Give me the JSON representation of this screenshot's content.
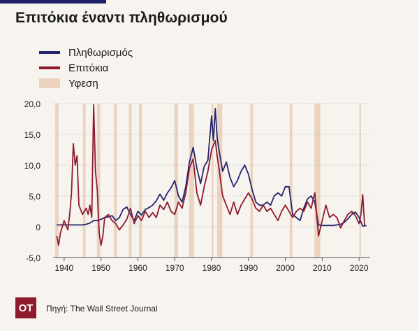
{
  "title": "Επιτόκια έναντι πληθωρισμού",
  "source": "Πηγή: The Wall Street Journal",
  "logo_text": "OT",
  "colors": {
    "inflation": "#24256e",
    "rates": "#8e1a2e",
    "recession": "#ecd3bf",
    "background": "#f7f3ee"
  },
  "chart_data": {
    "type": "line",
    "title": "Επιτόκια έναντι πληθωρισμού",
    "xlabel": "",
    "ylabel": "",
    "xlim": [
      1937,
      2023
    ],
    "ylim": [
      -5,
      20
    ],
    "x_ticks": [
      1940,
      1950,
      1960,
      1970,
      1980,
      1990,
      2000,
      2010,
      2020
    ],
    "x_tick_labels": [
      "1940",
      "1950",
      "1960",
      "1970",
      "1980",
      "1990",
      "2000",
      "2010",
      "2020"
    ],
    "y_ticks": [
      -5,
      0,
      5,
      10,
      15,
      20
    ],
    "y_tick_labels": [
      "-5,0",
      "0",
      "5,0",
      "10,0",
      "15,0",
      "20,0"
    ],
    "grid": "horizontal",
    "legend_position": "top-left",
    "series": [
      {
        "name": "Πληθωρισμός",
        "color": "#24256e",
        "points": [
          [
            1938,
            0.3
          ],
          [
            1941,
            0.3
          ],
          [
            1942,
            0.3
          ],
          [
            1943,
            0.3
          ],
          [
            1944,
            0.3
          ],
          [
            1945,
            0.3
          ],
          [
            1946,
            0.4
          ],
          [
            1947,
            0.6
          ],
          [
            1948,
            1.0
          ],
          [
            1949,
            1.0
          ],
          [
            1950,
            1.2
          ],
          [
            1951,
            1.5
          ],
          [
            1952,
            1.6
          ],
          [
            1953,
            1.8
          ],
          [
            1954,
            1.0
          ],
          [
            1955,
            1.5
          ],
          [
            1956,
            2.8
          ],
          [
            1957,
            3.2
          ],
          [
            1958,
            2.0
          ],
          [
            1959,
            1.0
          ],
          [
            1960,
            2.5
          ],
          [
            1961,
            1.9
          ],
          [
            1962,
            2.8
          ],
          [
            1963,
            3.1
          ],
          [
            1964,
            3.5
          ],
          [
            1965,
            4.2
          ],
          [
            1966,
            5.3
          ],
          [
            1967,
            4.3
          ],
          [
            1968,
            5.5
          ],
          [
            1969,
            6.3
          ],
          [
            1970,
            7.5
          ],
          [
            1971,
            5.0
          ],
          [
            1972,
            4.0
          ],
          [
            1973,
            6.5
          ],
          [
            1974,
            10.5
          ],
          [
            1975,
            12.9
          ],
          [
            1976,
            9.5
          ],
          [
            1977,
            7.0
          ],
          [
            1978,
            9.8
          ],
          [
            1979,
            10.8
          ],
          [
            1980,
            18.0
          ],
          [
            1980.5,
            14.0
          ],
          [
            1981,
            19.2
          ],
          [
            1981.5,
            14.5
          ],
          [
            1982,
            12.5
          ],
          [
            1983,
            9.0
          ],
          [
            1984,
            10.5
          ],
          [
            1985,
            8.0
          ],
          [
            1986,
            6.5
          ],
          [
            1987,
            7.5
          ],
          [
            1988,
            9.0
          ],
          [
            1989,
            10.0
          ],
          [
            1990,
            8.5
          ],
          [
            1991,
            6.0
          ],
          [
            1992,
            4.0
          ],
          [
            1993,
            3.5
          ],
          [
            1994,
            3.5
          ],
          [
            1995,
            4.0
          ],
          [
            1996,
            3.5
          ],
          [
            1997,
            5.0
          ],
          [
            1998,
            5.5
          ],
          [
            1999,
            5.0
          ],
          [
            2000,
            6.5
          ],
          [
            2001,
            6.5
          ],
          [
            2002,
            2.0
          ],
          [
            2003,
            1.5
          ],
          [
            2004,
            1.0
          ],
          [
            2005,
            3.0
          ],
          [
            2006,
            4.5
          ],
          [
            2007,
            5.0
          ],
          [
            2008,
            4.0
          ],
          [
            2009,
            0.3
          ],
          [
            2010,
            0.2
          ],
          [
            2011,
            0.2
          ],
          [
            2012,
            0.2
          ],
          [
            2013,
            0.2
          ],
          [
            2014,
            0.3
          ],
          [
            2015,
            0.4
          ],
          [
            2016,
            0.7
          ],
          [
            2017,
            1.3
          ],
          [
            2018,
            2.0
          ],
          [
            2019,
            2.4
          ],
          [
            2020,
            1.5
          ],
          [
            2021,
            0.1
          ],
          [
            2022,
            0.2
          ]
        ]
      },
      {
        "name": "Επιτόκια",
        "color": "#8e1a2e",
        "points": [
          [
            1938,
            -1.5
          ],
          [
            1938.5,
            -3.0
          ],
          [
            1939,
            -1.0
          ],
          [
            1940,
            1.0
          ],
          [
            1941,
            -0.5
          ],
          [
            1941.5,
            2.0
          ],
          [
            1942,
            5.5
          ],
          [
            1942.5,
            13.5
          ],
          [
            1943,
            10.0
          ],
          [
            1943.5,
            11.5
          ],
          [
            1944,
            3.5
          ],
          [
            1945,
            2.0
          ],
          [
            1946,
            3.0
          ],
          [
            1946.5,
            2.0
          ],
          [
            1947,
            3.5
          ],
          [
            1947.5,
            1.5
          ],
          [
            1948,
            19.8
          ],
          [
            1948.5,
            9.0
          ],
          [
            1949,
            6.0
          ],
          [
            1949.5,
            -1.0
          ],
          [
            1950,
            -3.0
          ],
          [
            1950.5,
            -1.5
          ],
          [
            1951,
            1.5
          ],
          [
            1952,
            2.0
          ],
          [
            1953,
            1.0
          ],
          [
            1954,
            0.5
          ],
          [
            1955,
            -0.5
          ],
          [
            1956,
            0.3
          ],
          [
            1957,
            1.2
          ],
          [
            1958,
            3.0
          ],
          [
            1959,
            0.5
          ],
          [
            1960,
            1.8
          ],
          [
            1961,
            1.0
          ],
          [
            1962,
            2.5
          ],
          [
            1963,
            1.5
          ],
          [
            1964,
            2.3
          ],
          [
            1965,
            1.5
          ],
          [
            1966,
            3.5
          ],
          [
            1967,
            2.8
          ],
          [
            1968,
            4.0
          ],
          [
            1969,
            2.5
          ],
          [
            1970,
            2.0
          ],
          [
            1971,
            4.0
          ],
          [
            1972,
            3.0
          ],
          [
            1973,
            5.5
          ],
          [
            1974,
            9.5
          ],
          [
            1975,
            11.0
          ],
          [
            1976,
            5.5
          ],
          [
            1977,
            3.5
          ],
          [
            1978,
            6.5
          ],
          [
            1979,
            9.0
          ],
          [
            1980,
            12.5
          ],
          [
            1981,
            14.0
          ],
          [
            1981.5,
            11.5
          ],
          [
            1982,
            9.5
          ],
          [
            1983,
            5.0
          ],
          [
            1984,
            3.5
          ],
          [
            1985,
            2.0
          ],
          [
            1986,
            4.0
          ],
          [
            1987,
            2.0
          ],
          [
            1988,
            3.5
          ],
          [
            1989,
            4.5
          ],
          [
            1990,
            5.5
          ],
          [
            1991,
            4.5
          ],
          [
            1992,
            3.0
          ],
          [
            1993,
            2.5
          ],
          [
            1994,
            3.5
          ],
          [
            1995,
            2.5
          ],
          [
            1996,
            3.0
          ],
          [
            1997,
            2.0
          ],
          [
            1998,
            1.0
          ],
          [
            1999,
            2.5
          ],
          [
            2000,
            3.5
          ],
          [
            2001,
            2.5
          ],
          [
            2002,
            1.5
          ],
          [
            2003,
            2.5
          ],
          [
            2004,
            3.0
          ],
          [
            2005,
            2.5
          ],
          [
            2006,
            4.0
          ],
          [
            2007,
            3.0
          ],
          [
            2008,
            5.5
          ],
          [
            2009,
            -1.5
          ],
          [
            2010,
            1.0
          ],
          [
            2011,
            3.5
          ],
          [
            2012,
            1.5
          ],
          [
            2013,
            2.0
          ],
          [
            2014,
            1.5
          ],
          [
            2015,
            -0.2
          ],
          [
            2016,
            1.0
          ],
          [
            2017,
            2.0
          ],
          [
            2018,
            2.5
          ],
          [
            2019,
            1.8
          ],
          [
            2020,
            0.5
          ],
          [
            2020.5,
            2.0
          ],
          [
            2021,
            5.2
          ],
          [
            2021.5,
            0.2
          ]
        ]
      }
    ],
    "recessions": {
      "name": "Υφεση",
      "color": "#ecd3bf",
      "periods": [
        [
          1937.6,
          1938.5
        ],
        [
          1945.1,
          1945.8
        ],
        [
          1948.9,
          1949.8
        ],
        [
          1953.5,
          1954.3
        ],
        [
          1957.6,
          1958.3
        ],
        [
          1960.3,
          1961.1
        ],
        [
          1969.9,
          1970.9
        ],
        [
          1973.9,
          1975.2
        ],
        [
          1980.0,
          1980.5
        ],
        [
          1981.5,
          1982.9
        ],
        [
          1990.5,
          1991.2
        ],
        [
          2001.2,
          2001.9
        ],
        [
          2007.9,
          2009.5
        ],
        [
          2020.1,
          2020.5
        ]
      ]
    }
  }
}
